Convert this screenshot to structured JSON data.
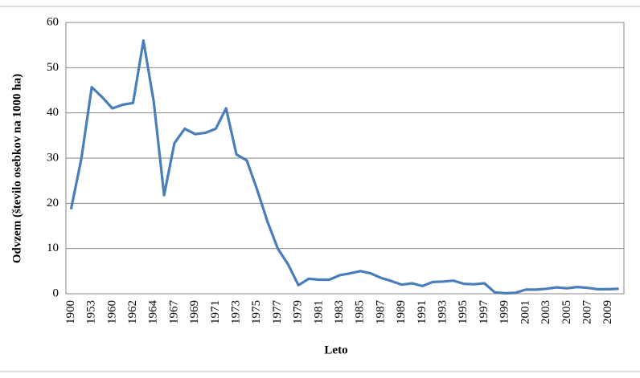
{
  "chart_data": {
    "type": "line",
    "y_label": "Odvzem (število osebkov na 1000 ha)",
    "x_label": "Leto",
    "categories": [
      "1900",
      null,
      "1953",
      null,
      "1960",
      null,
      "1962",
      null,
      "1964",
      null,
      "1967",
      null,
      "1969",
      null,
      "1971",
      null,
      "1973",
      null,
      "1975",
      null,
      "1977",
      null,
      "1979",
      null,
      "1981",
      null,
      "1983",
      null,
      "1985",
      null,
      "1987",
      null,
      "1989",
      null,
      "1991",
      null,
      "1993",
      null,
      "1995",
      null,
      "1997",
      null,
      "1999",
      null,
      "2001",
      null,
      "2003",
      null,
      "2005",
      null,
      "2007",
      null,
      "2009",
      null
    ],
    "series": [
      {
        "color": "#4a7ebb",
        "values": [
          18.7,
          30,
          45.7,
          43.5,
          41,
          41.8,
          42.2,
          56,
          42.5,
          21.8,
          33.3,
          36.5,
          35.3,
          35.6,
          36.5,
          41,
          30.8,
          29.5,
          23,
          16,
          10,
          6.5,
          1.9,
          3.3,
          3.1,
          3.1,
          4.1,
          4.5,
          5,
          4.5,
          3.5,
          2.8,
          2,
          2.3,
          1.7,
          2.6,
          2.7,
          2.9,
          2.2,
          2.1,
          2.3,
          0.3,
          0.1,
          0.2,
          0.9,
          0.9,
          1.1,
          1.4,
          1.2,
          1.5,
          1.3,
          1,
          1,
          1.1
        ]
      }
    ],
    "ylim": [
      0,
      60
    ],
    "yticks": [
      0,
      10,
      20,
      30,
      40,
      50,
      60
    ],
    "grid": true
  }
}
